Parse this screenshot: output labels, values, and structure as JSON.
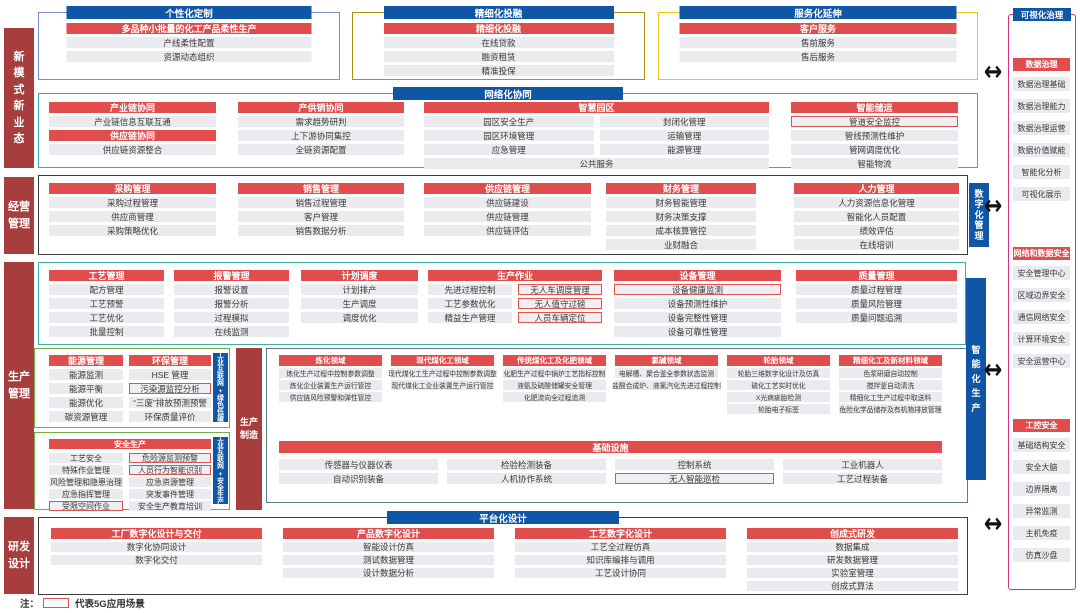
{
  "colors": {
    "header_blue": "#0f56a6",
    "header_red": "#e14d4d",
    "rail_red": "#a73d3d",
    "five_g_red": "#e0524f",
    "teal_border": "#3fae9f",
    "green_border": "#6fae4e",
    "right_panel_border": "#d6337c"
  },
  "left_rail": [
    {
      "id": "new-modes",
      "lines": [
        "新",
        "模",
        "式",
        "新",
        "业",
        "态"
      ]
    },
    {
      "id": "operation",
      "lines": [
        "经营",
        "管理"
      ]
    },
    {
      "id": "production",
      "lines": [
        "生产",
        "管理"
      ]
    },
    {
      "id": "rd-design",
      "lines": [
        "研发",
        "设计"
      ]
    }
  ],
  "row1": [
    {
      "header": "个性化定制",
      "card": {
        "title": "多品种小批量的化工产品柔性生产",
        "items": [
          "产线柔性配置",
          "资源动态组织"
        ]
      }
    },
    {
      "header": "精细化投融",
      "card": {
        "title": "精细化投融",
        "items": [
          "在线贷款",
          "融资租赁",
          "精准投保"
        ]
      }
    },
    {
      "header": "服务化延伸",
      "card": {
        "title": "客户服务",
        "items": [
          "售前服务",
          "售后服务"
        ]
      }
    }
  ],
  "network": {
    "header": "网络化协同",
    "col1": [
      {
        "title": "产业链协同",
        "items": [
          "产业链信息互联互通"
        ]
      },
      {
        "title": "供应链协同",
        "items": [
          "供应链资源整合"
        ]
      }
    ],
    "col2": {
      "title": "产供销协同",
      "items": [
        "需求趋势研判",
        "上下游协同集控",
        "全链资源配置"
      ]
    },
    "smart_park": {
      "title": "智慧园区",
      "col_a": [
        "园区安全生产",
        "园区环境管理",
        "应急管理"
      ],
      "col_b": [
        "封闭化管理",
        "运输管理",
        "能源管理"
      ],
      "span": "公共服务"
    },
    "col4": {
      "title": "智能储运",
      "items": [
        {
          "t": "管道安全监控",
          "g": true
        },
        "管线预测性维护",
        "管网调度优化",
        "智能物流"
      ]
    }
  },
  "management": {
    "side_label": "数字化管理",
    "cards": [
      {
        "title": "采购管理",
        "items": [
          "采购过程管理",
          "供应商管理",
          "采购策略优化"
        ]
      },
      {
        "title": "销售管理",
        "items": [
          "销售过程管理",
          "客户管理",
          "销售数据分析"
        ]
      },
      {
        "title": "供应链管理",
        "items": [
          "供应链建设",
          "供应链管理",
          "供应链评估"
        ]
      },
      {
        "title": "财务管理",
        "items": [
          "财务智能管理",
          "财务决策支撑",
          "成本核算管控",
          "业财融合"
        ]
      },
      {
        "title": "人力管理",
        "items": [
          "人力资源信息化管理",
          "智能化人员配置",
          "绩效评估",
          "在线培训"
        ]
      }
    ]
  },
  "production_top": {
    "cards": [
      {
        "title": "工艺管理",
        "items": [
          "配方管理",
          "工艺预警",
          "工艺优化",
          "批量控制"
        ]
      },
      {
        "title": "报警管理",
        "items": [
          "报警设置",
          "报警分析",
          "过程模拟",
          "在线监测"
        ]
      },
      {
        "title": "计划调度",
        "items": [
          "计划排产",
          "生产调度",
          "调度优化"
        ]
      },
      {
        "title": "生产作业",
        "col_a": [
          "先进过程控制",
          "工艺参数优化",
          "精益生产管理"
        ],
        "col_b": [
          {
            "t": "无人车调度管理",
            "g": true
          },
          {
            "t": "无人值守过磅",
            "g": true
          },
          {
            "t": "人员车辆定位",
            "g": true
          }
        ]
      },
      {
        "title": "设备管理",
        "items": [
          {
            "t": "设备健康监测",
            "g": true
          },
          "设备预测性维护",
          "设备完整性管理",
          "设备可靠性管理"
        ]
      },
      {
        "title": "质量管理",
        "items": [
          "质量过程管理",
          "质量风险管理",
          "质量问题追溯"
        ]
      }
    ]
  },
  "green_energy": {
    "side_label": "工业互联网+绿色低碳",
    "cards": [
      {
        "title": "能源管理",
        "items": [
          "能源监测",
          "能源平衡",
          "能源优化",
          "碳资源管理"
        ]
      },
      {
        "title": "环保管理",
        "items": [
          "HSE 管理",
          {
            "t": "污染源监控分析",
            "g": true
          },
          "“三废”排放预测预警",
          "环保质量评价"
        ]
      }
    ]
  },
  "green_safety": {
    "side_label": "工业互联网+安全生产",
    "title": "安全生产",
    "col_a": [
      "工艺安全",
      "特殊作业管理",
      "风险管理和隐患治理",
      "应急指挥管理",
      {
        "t": "受限空间作业",
        "g": true
      }
    ],
    "col_b": [
      {
        "t": "危险源监测预警",
        "g": true
      },
      {
        "t": "人员行为智能识别",
        "g": true
      },
      "应急资源管理",
      "突发事件管理",
      "安全生产教育培训"
    ]
  },
  "manufacture_label": {
    "lines": [
      "生产",
      "制造"
    ]
  },
  "domains": [
    {
      "title": "炼化领域",
      "items": [
        "炼化生产过程中控制参数调整",
        "炼化企业装置生产运行管控",
        "供应链风险预警和弹性管控"
      ]
    },
    {
      "title": "现代煤化工领域",
      "items": [
        "现代煤化工生产过程中控制参数调整",
        "现代煤化工企业装置生产运行管控"
      ]
    },
    {
      "title": "传统煤化工及化肥领域",
      "items": [
        "化肥生产过程中锅炉工艺指标控制",
        "液氨及硫酸储罐安全管理",
        "化肥流向全过程追溯"
      ]
    },
    {
      "title": "氯碱领域",
      "items": [
        "电解槽、聚合釜全参数状态监测",
        "盐酸合成炉、液氯汽化先进过程控制"
      ]
    },
    {
      "title": "轮胎领域",
      "items": [
        "轮胎三维数字化设计及仿真",
        "硫化工艺实时优化",
        "X光病疵胎检测",
        "轮胎电子标签"
      ]
    },
    {
      "title": "精细化工及新材料领域",
      "items": [
        "色浆研磨自动控制",
        "搅拌釜自动清洗",
        "精细化工生产过程中取送料",
        "危险化学品储存及有机物排放管理"
      ]
    }
  ],
  "infrastructure": {
    "title": "基础设施",
    "cols": [
      [
        "传感器与仪器仪表",
        "自动识别装备"
      ],
      [
        "检验检测装备",
        "人机协作系统"
      ],
      [
        "控制系统",
        {
          "t": "无人智能巡检",
          "g": true
        }
      ],
      [
        "工业机器人",
        "工艺过程装备"
      ]
    ]
  },
  "smart_production_label": "智能化生产",
  "platform": {
    "header": "平台化设计",
    "cards": [
      {
        "title": "工厂数字化设计与交付",
        "items": [
          "数字化协同设计",
          "数字化交付"
        ]
      },
      {
        "title": "产品数字化设计",
        "items": [
          "智能设计仿真",
          "测试数据管理",
          "设计数据分析"
        ]
      },
      {
        "title": "工艺数字化设计",
        "items": [
          "工艺全过程仿真",
          "知识库编排与调用",
          "工艺设计协同"
        ]
      },
      {
        "title": "创成式研发",
        "items": [
          "数据集成",
          "研发数据管理",
          "实验室管理",
          "创成式算法"
        ]
      }
    ]
  },
  "right_panel": {
    "header": "可视化治理",
    "sections": [
      {
        "title": "数据治理",
        "items": [
          "数据治理基础",
          "数据治理能力",
          "数据治理运营",
          "数据价值赋能",
          "智能化分析",
          "可视化展示"
        ]
      },
      {
        "title": "网络和数据安全",
        "items": [
          "安全管理中心",
          "区域边界安全",
          "通信网络安全",
          "计算环境安全",
          "安全运营中心"
        ]
      },
      {
        "title": "工控安全",
        "items": [
          "基础结构安全",
          "安全大脑",
          "边界隔离",
          "异常监测",
          "主机免疫",
          "仿真沙盘"
        ]
      }
    ]
  },
  "arrows": {
    "glyph": "↔"
  },
  "legend": {
    "prefix": "注：",
    "label": "代表5G应用场景"
  }
}
